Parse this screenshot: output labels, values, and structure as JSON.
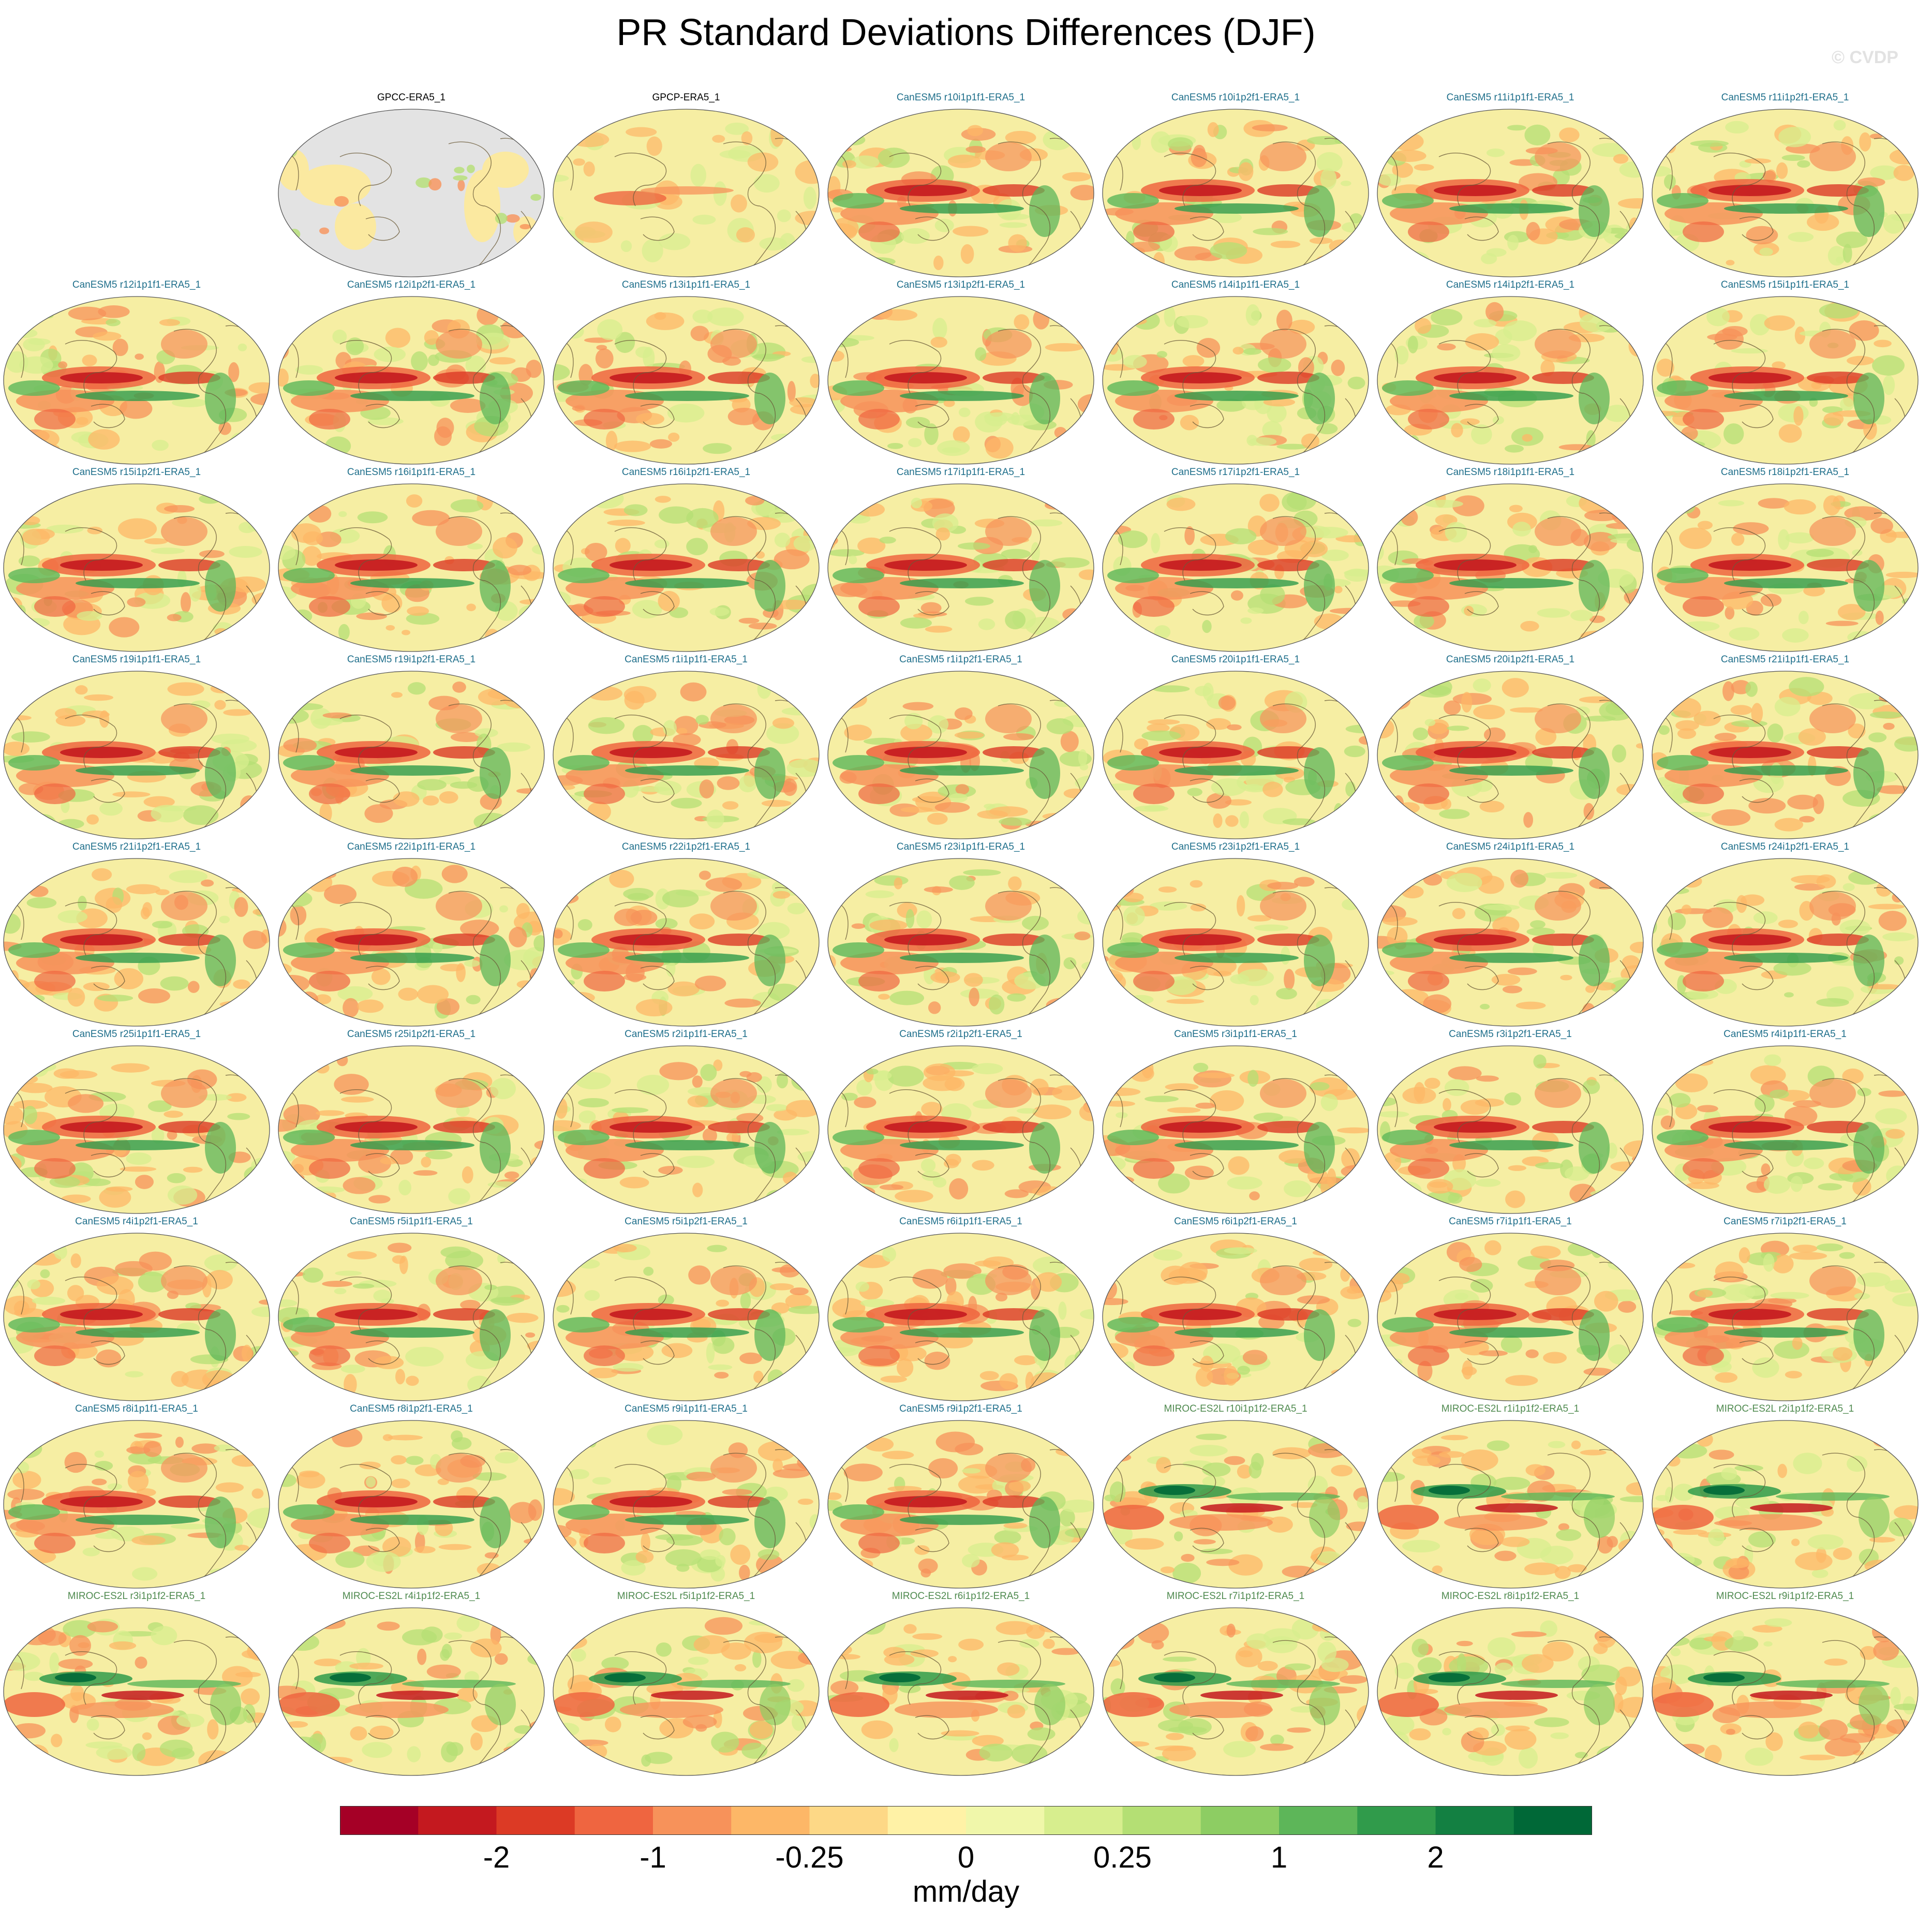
{
  "title": "PR Standard Deviations Differences (DJF)",
  "watermark": "© CVDP",
  "colors": {
    "canesm_title": "#1f6f8b",
    "miroc_title": "#4f8a4f",
    "obs_title": "#000000",
    "coastline": "#6b5b3a",
    "missing_land": "#e3e3e3"
  },
  "panels": [
    {
      "label": "GPCC-ERA5_1",
      "group": "obs-land"
    },
    {
      "label": "GPCP-ERA5_1",
      "group": "obs"
    },
    {
      "label": "CanESM5 r10i1p1f1-ERA5_1",
      "group": "canesm"
    },
    {
      "label": "CanESM5 r10i1p2f1-ERA5_1",
      "group": "canesm"
    },
    {
      "label": "CanESM5 r11i1p1f1-ERA5_1",
      "group": "canesm"
    },
    {
      "label": "CanESM5 r11i1p2f1-ERA5_1",
      "group": "canesm"
    },
    {
      "label": "CanESM5 r12i1p1f1-ERA5_1",
      "group": "canesm"
    },
    {
      "label": "CanESM5 r12i1p2f1-ERA5_1",
      "group": "canesm"
    },
    {
      "label": "CanESM5 r13i1p1f1-ERA5_1",
      "group": "canesm"
    },
    {
      "label": "CanESM5 r13i1p2f1-ERA5_1",
      "group": "canesm"
    },
    {
      "label": "CanESM5 r14i1p1f1-ERA5_1",
      "group": "canesm"
    },
    {
      "label": "CanESM5 r14i1p2f1-ERA5_1",
      "group": "canesm"
    },
    {
      "label": "CanESM5 r15i1p1f1-ERA5_1",
      "group": "canesm"
    },
    {
      "label": "CanESM5 r15i1p2f1-ERA5_1",
      "group": "canesm"
    },
    {
      "label": "CanESM5 r16i1p1f1-ERA5_1",
      "group": "canesm"
    },
    {
      "label": "CanESM5 r16i1p2f1-ERA5_1",
      "group": "canesm"
    },
    {
      "label": "CanESM5 r17i1p1f1-ERA5_1",
      "group": "canesm"
    },
    {
      "label": "CanESM5 r17i1p2f1-ERA5_1",
      "group": "canesm"
    },
    {
      "label": "CanESM5 r18i1p1f1-ERA5_1",
      "group": "canesm"
    },
    {
      "label": "CanESM5 r18i1p2f1-ERA5_1",
      "group": "canesm"
    },
    {
      "label": "CanESM5 r19i1p1f1-ERA5_1",
      "group": "canesm"
    },
    {
      "label": "CanESM5 r19i1p2f1-ERA5_1",
      "group": "canesm"
    },
    {
      "label": "CanESM5 r1i1p1f1-ERA5_1",
      "group": "canesm"
    },
    {
      "label": "CanESM5 r1i1p2f1-ERA5_1",
      "group": "canesm"
    },
    {
      "label": "CanESM5 r20i1p1f1-ERA5_1",
      "group": "canesm"
    },
    {
      "label": "CanESM5 r20i1p2f1-ERA5_1",
      "group": "canesm"
    },
    {
      "label": "CanESM5 r21i1p1f1-ERA5_1",
      "group": "canesm"
    },
    {
      "label": "CanESM5 r21i1p2f1-ERA5_1",
      "group": "canesm"
    },
    {
      "label": "CanESM5 r22i1p1f1-ERA5_1",
      "group": "canesm"
    },
    {
      "label": "CanESM5 r22i1p2f1-ERA5_1",
      "group": "canesm"
    },
    {
      "label": "CanESM5 r23i1p1f1-ERA5_1",
      "group": "canesm"
    },
    {
      "label": "CanESM5 r23i1p2f1-ERA5_1",
      "group": "canesm"
    },
    {
      "label": "CanESM5 r24i1p1f1-ERA5_1",
      "group": "canesm"
    },
    {
      "label": "CanESM5 r24i1p2f1-ERA5_1",
      "group": "canesm"
    },
    {
      "label": "CanESM5 r25i1p1f1-ERA5_1",
      "group": "canesm"
    },
    {
      "label": "CanESM5 r25i1p2f1-ERA5_1",
      "group": "canesm"
    },
    {
      "label": "CanESM5 r2i1p1f1-ERA5_1",
      "group": "canesm"
    },
    {
      "label": "CanESM5 r2i1p2f1-ERA5_1",
      "group": "canesm"
    },
    {
      "label": "CanESM5 r3i1p1f1-ERA5_1",
      "group": "canesm"
    },
    {
      "label": "CanESM5 r3i1p2f1-ERA5_1",
      "group": "canesm"
    },
    {
      "label": "CanESM5 r4i1p1f1-ERA5_1",
      "group": "canesm"
    },
    {
      "label": "CanESM5 r4i1p2f1-ERA5_1",
      "group": "canesm"
    },
    {
      "label": "CanESM5 r5i1p1f1-ERA5_1",
      "group": "canesm"
    },
    {
      "label": "CanESM5 r5i1p2f1-ERA5_1",
      "group": "canesm"
    },
    {
      "label": "CanESM5 r6i1p1f1-ERA5_1",
      "group": "canesm"
    },
    {
      "label": "CanESM5 r6i1p2f1-ERA5_1",
      "group": "canesm"
    },
    {
      "label": "CanESM5 r7i1p1f1-ERA5_1",
      "group": "canesm"
    },
    {
      "label": "CanESM5 r7i1p2f1-ERA5_1",
      "group": "canesm"
    },
    {
      "label": "CanESM5 r8i1p1f1-ERA5_1",
      "group": "canesm"
    },
    {
      "label": "CanESM5 r8i1p2f1-ERA5_1",
      "group": "canesm"
    },
    {
      "label": "CanESM5 r9i1p1f1-ERA5_1",
      "group": "canesm"
    },
    {
      "label": "CanESM5 r9i1p2f1-ERA5_1",
      "group": "canesm"
    },
    {
      "label": "MIROC-ES2L r10i1p1f2-ERA5_1",
      "group": "miroc"
    },
    {
      "label": "MIROC-ES2L r1i1p1f2-ERA5_1",
      "group": "miroc"
    },
    {
      "label": "MIROC-ES2L r2i1p1f2-ERA5_1",
      "group": "miroc"
    },
    {
      "label": "MIROC-ES2L r3i1p1f2-ERA5_1",
      "group": "miroc"
    },
    {
      "label": "MIROC-ES2L r4i1p1f2-ERA5_1",
      "group": "miroc"
    },
    {
      "label": "MIROC-ES2L r5i1p1f2-ERA5_1",
      "group": "miroc"
    },
    {
      "label": "MIROC-ES2L r6i1p1f2-ERA5_1",
      "group": "miroc"
    },
    {
      "label": "MIROC-ES2L r7i1p1f2-ERA5_1",
      "group": "miroc"
    },
    {
      "label": "MIROC-ES2L r8i1p1f2-ERA5_1",
      "group": "miroc"
    },
    {
      "label": "MIROC-ES2L r9i1p1f2-ERA5_1",
      "group": "miroc"
    }
  ],
  "colorbar": {
    "colors": [
      "#a50026",
      "#c4191f",
      "#dc3a25",
      "#ef6540",
      "#f7925a",
      "#fdb767",
      "#fdd886",
      "#fff2a6",
      "#f0f7aa",
      "#d7ee8e",
      "#b4df74",
      "#8dcd63",
      "#5db659",
      "#309b4b",
      "#138042",
      "#006837"
    ],
    "tick_labels": [
      "-2",
      "-1",
      "-0.25",
      "0",
      "0.25",
      "1",
      "2"
    ],
    "tick_edges": [
      2,
      4,
      6,
      8,
      10,
      12,
      14
    ],
    "units": "mm/day"
  }
}
